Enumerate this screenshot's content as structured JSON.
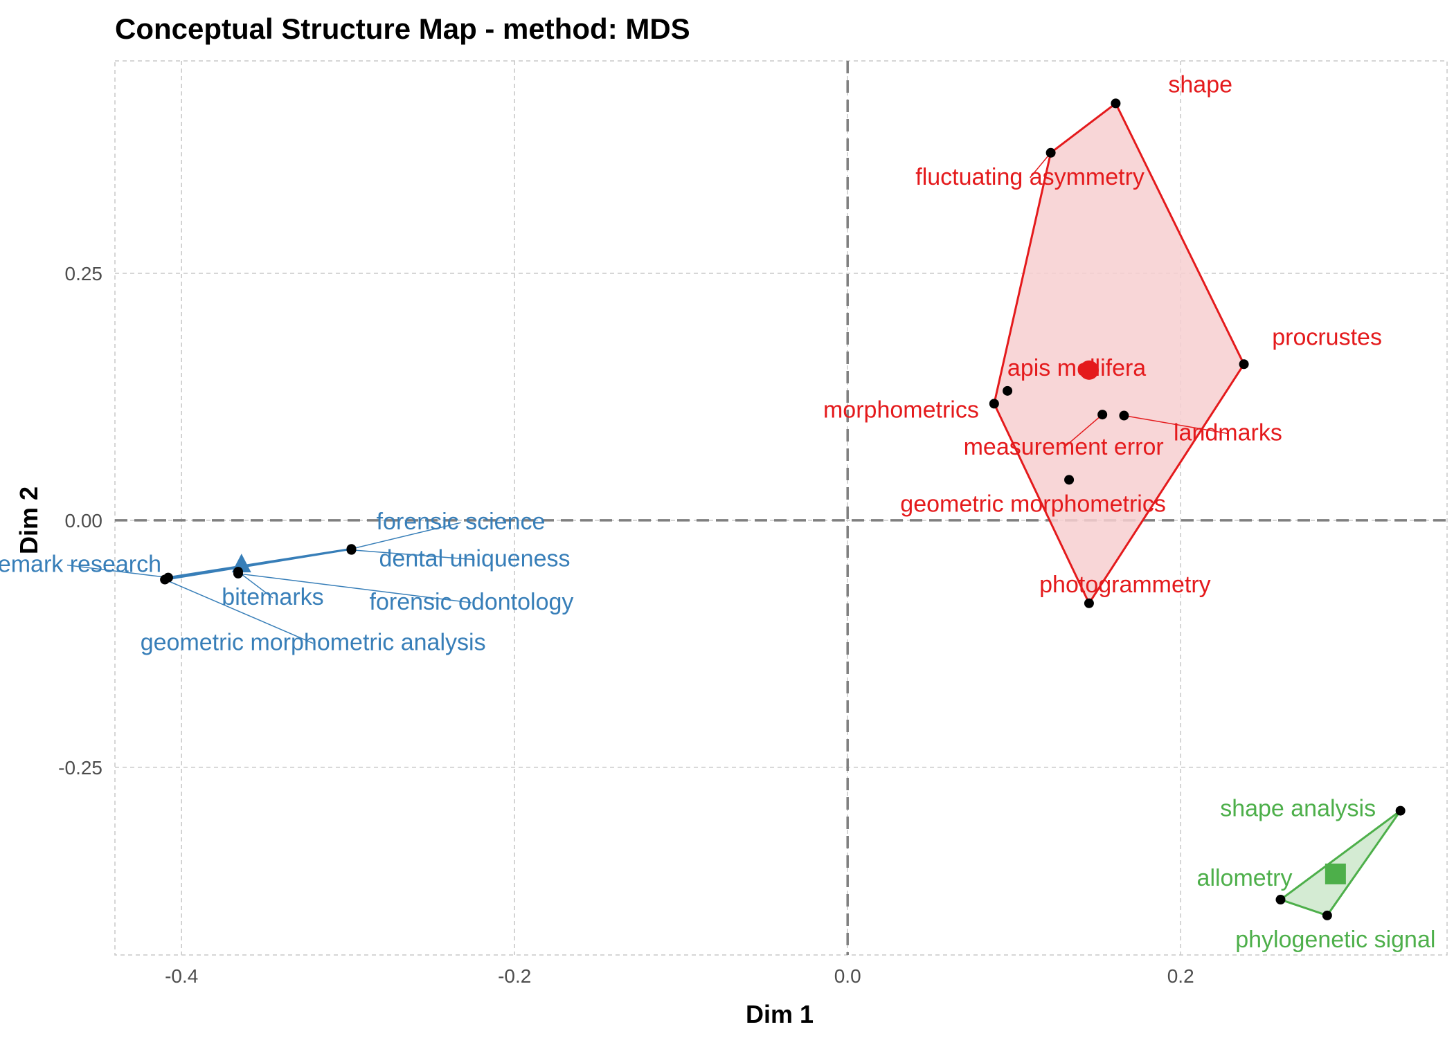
{
  "chart_data": {
    "type": "scatter",
    "title": "Conceptual Structure Map - method: MDS",
    "xlabel": "Dim 1",
    "ylabel": "Dim 2",
    "xlim": [
      -0.44,
      0.36
    ],
    "ylim": [
      -0.44,
      0.465
    ],
    "x_ticks": [
      -0.4,
      -0.2,
      0.0,
      0.2
    ],
    "x_tick_labels": [
      "-0.4",
      "-0.2",
      "0.0",
      "0.2"
    ],
    "y_ticks": [
      -0.25,
      0.0,
      0.25
    ],
    "y_tick_labels": [
      "-0.25",
      "0.00",
      "0.25"
    ],
    "grid": true,
    "zero_lines": true,
    "clusters": [
      {
        "color": "#e41a1c",
        "fill": "#f7cfd0",
        "centroid": {
          "x": 0.145,
          "y": 0.152,
          "marker": "circle"
        },
        "points": [
          {
            "label": "shape",
            "x": 0.161,
            "y": 0.422
          },
          {
            "label": "fluctuating asymmetry",
            "x": 0.122,
            "y": 0.372
          },
          {
            "label": "apis mellifera",
            "x": 0.096,
            "y": 0.131
          },
          {
            "label": "procrustes",
            "x": 0.238,
            "y": 0.158
          },
          {
            "label": "morphometrics",
            "x": 0.088,
            "y": 0.118
          },
          {
            "label": "measurement error",
            "x": 0.153,
            "y": 0.107
          },
          {
            "label": "landmarks",
            "x": 0.166,
            "y": 0.106
          },
          {
            "label": "geometric morphometrics",
            "x": 0.133,
            "y": 0.041
          },
          {
            "label": "photogrammetry",
            "x": 0.145,
            "y": -0.084
          }
        ],
        "hull": [
          "shape",
          "procrustes",
          "photogrammetry",
          "morphometrics",
          "fluctuating asymmetry"
        ]
      },
      {
        "color": "#377eb8",
        "fill": "#c3d7ea",
        "centroid": {
          "x": -0.364,
          "y": -0.045,
          "marker": "triangle"
        },
        "points": [
          {
            "label": "forensic science",
            "x": -0.298,
            "y": -0.029
          },
          {
            "label": "bitemark research",
            "x": -0.408,
            "y": -0.058
          },
          {
            "label": "dental uniqueness",
            "x": -0.298,
            "y": -0.03
          },
          {
            "label": "bitemarks",
            "x": -0.366,
            "y": -0.052
          },
          {
            "label": "forensic odontology",
            "x": -0.366,
            "y": -0.054
          },
          {
            "label": "geometric morphometric analysis",
            "x": -0.41,
            "y": -0.06
          }
        ],
        "hull": [
          "forensic science",
          "bitemark research",
          "geometric morphometric analysis"
        ]
      },
      {
        "color": "#4daf4a",
        "fill": "#cde8cb",
        "centroid": {
          "x": 0.293,
          "y": -0.358,
          "marker": "square"
        },
        "points": [
          {
            "label": "shape analysis",
            "x": 0.332,
            "y": -0.294
          },
          {
            "label": "allometry",
            "x": 0.26,
            "y": -0.384
          },
          {
            "label": "phylogenetic signal",
            "x": 0.288,
            "y": -0.4
          }
        ],
        "hull": [
          "shape analysis",
          "phylogenetic signal",
          "allometry"
        ]
      }
    ]
  }
}
